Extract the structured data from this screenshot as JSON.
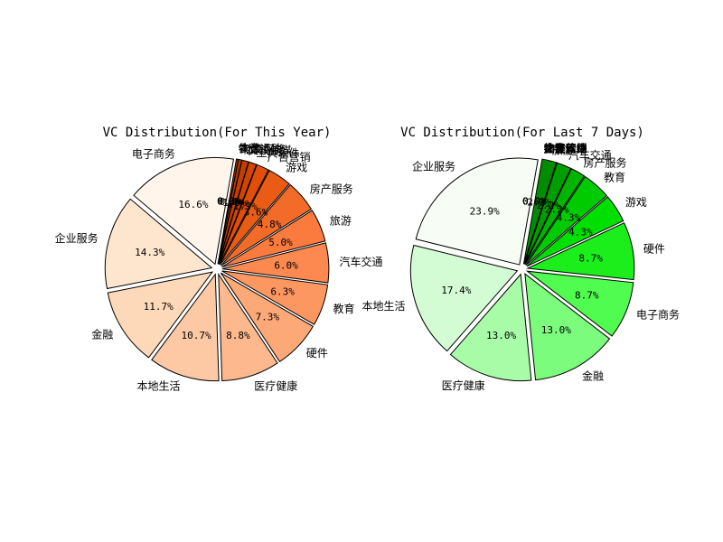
{
  "chart_data": [
    {
      "type": "pie",
      "title": "VC Distribution(For This Year)",
      "categories": [
        "电子商务",
        "企业服务",
        "金融",
        "本地生活",
        "医疗健康",
        "硬件",
        "教育",
        "汽车交通",
        "旅游",
        "房产服务",
        "游戏",
        "广告营销",
        "工具软件",
        "文娱传媒",
        "社交网络",
        "物流",
        "体育运动",
        "农业"
      ],
      "values": [
        16.6,
        14.3,
        11.7,
        10.7,
        8.8,
        7.3,
        6.3,
        6.0,
        5.0,
        4.8,
        3.6,
        1.9,
        1.2,
        1.0,
        0.5,
        0.3,
        0.0,
        0.0
      ],
      "percent_labels": [
        "16.6%",
        "14.3%",
        "11.7%",
        "10.7%",
        "8.8%",
        "7.3%",
        "6.3%",
        "6.0%",
        "5.0%",
        "4.8%",
        "3.6%",
        "1.9%",
        "1.2%",
        "1.0%",
        "0.5%",
        "0.3%",
        "0.0%",
        "0.0%"
      ],
      "start_angle_deg": 80,
      "colors": [
        "#fff5eb",
        "#fee6ce",
        "#fdd9b9",
        "#fdc9a4",
        "#fdb98d",
        "#fda877",
        "#fd9762",
        "#fd8850",
        "#fa7b3d",
        "#f36b28",
        "#ea5c16",
        "#e04e0a",
        "#d34404",
        "#c33e03",
        "#b33a03",
        "#a33503",
        "#953003",
        "#7f2704"
      ]
    },
    {
      "type": "pie",
      "title": "VC Distribution(For Last 7 Days)",
      "categories": [
        "企业服务",
        "本地生活",
        "医疗健康",
        "金融",
        "电子商务",
        "硬件",
        "游戏",
        "教育",
        "房产服务",
        "汽车交通",
        "旅游",
        "广告营销",
        "工具软件",
        "文娱传媒",
        "社交网络",
        "物流",
        "体育运动",
        "农业"
      ],
      "values": [
        23.9,
        17.4,
        13.0,
        13.0,
        8.7,
        8.7,
        4.3,
        4.3,
        2.2,
        2.2,
        2.2,
        0.0,
        0.0,
        0.0,
        0.0,
        0.0,
        0.0,
        0.0
      ],
      "percent_labels": [
        "23.9%",
        "17.4%",
        "13.0%",
        "13.0%",
        "8.7%",
        "8.7%",
        "4.3%",
        "4.3%",
        "2.2%",
        "2.2%",
        "2.2%",
        "0.0%",
        "0.0%",
        "0.0%",
        "0.0%",
        "0.0%",
        "0.0%",
        "0.0%"
      ],
      "start_angle_deg": 80,
      "colors": [
        "#f7fcf5",
        "#d4fcd4",
        "#a8fca8",
        "#7cfc7c",
        "#50fc50",
        "#1cee1c",
        "#00e000",
        "#00ca00",
        "#00b400",
        "#009e00",
        "#008c00",
        "#007e00",
        "#007000",
        "#006400",
        "#005800",
        "#004e00",
        "#004500",
        "#003c00"
      ]
    }
  ]
}
